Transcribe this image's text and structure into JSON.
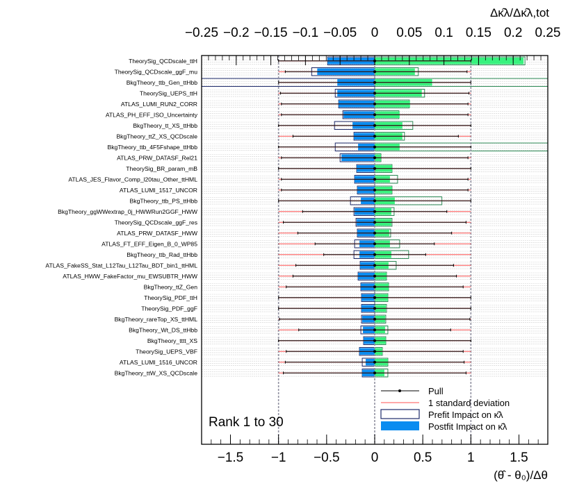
{
  "chart_data": {
    "type": "ranking",
    "title": "Rank 1 to 30",
    "xlabel": "(θ̂ - θ₀)/Δθ",
    "x2label": "Δκ̂λ/Δκ̂λ,tot",
    "xlim": [
      -1.8,
      1.8
    ],
    "x2lim": [
      -0.25,
      0.25
    ],
    "x_ticks": [
      "−1.5",
      "−1",
      "−0.5",
      "0",
      "0.5",
      "1",
      "1.5"
    ],
    "x_tick_values": [
      -1.5,
      -1,
      -0.5,
      0,
      0.5,
      1,
      1.5
    ],
    "x2_ticks": [
      "−0.25",
      "−0.2",
      "−0.15",
      "−0.1",
      "−0.05",
      "0",
      "0.05",
      "0.1",
      "0.15",
      "0.2",
      "0.25"
    ],
    "x2_tick_values": [
      -0.25,
      -0.2,
      -0.15,
      -0.1,
      -0.05,
      0,
      0.05,
      0.1,
      0.15,
      0.2,
      0.25
    ],
    "legend": {
      "pull": "Pull",
      "sigma": "1 standard deviation",
      "prefit": "Prefit Impact on κ̂λ",
      "postfit": "Postfit Impact on κ̂λ"
    },
    "colors": {
      "prefit_fill": "#38f27e",
      "prefit_up_edge": "#2e8b57",
      "prefit_down_edge": "#1f2b6b",
      "postfit": "#0a8cf0",
      "sigma_line": "#ff5050",
      "pull": "#000000",
      "dashed": "#9090a0",
      "stripe": "#cfcfcf"
    },
    "nuisance_parameters": [
      {
        "name": "TheorySig_QCDscale_ttH",
        "pull": 0.0,
        "err_lo": 1.0,
        "err_hi": 1.0,
        "prefit_up": 0.217,
        "prefit_down": -0.068,
        "postfit_up": 0.215,
        "postfit_down": -0.068
      },
      {
        "name": "TheorySig_QCDscale_ggF_mu",
        "pull": 0.0,
        "err_lo": 0.93,
        "err_hi": 0.96,
        "prefit_up": 0.063,
        "prefit_down": -0.091,
        "postfit_up": 0.058,
        "postfit_down": -0.083
      },
      {
        "name": "BkgTheory_ttb_Gen_ttHbb",
        "pull": 0.0,
        "err_lo": 1.0,
        "err_hi": 1.0,
        "prefit_up": 0.27,
        "prefit_down": -0.27,
        "postfit_up": 0.083,
        "postfit_down": -0.054
      },
      {
        "name": "TheorySig_UEPS_ttH",
        "pull": 0.0,
        "err_lo": 0.98,
        "err_hi": 0.98,
        "prefit_up": 0.072,
        "prefit_down": -0.057,
        "postfit_up": 0.068,
        "postfit_down": -0.054
      },
      {
        "name": "ATLAS_LUMI_RUN2_CORR",
        "pull": 0.0,
        "err_lo": 0.97,
        "err_hi": 0.97,
        "prefit_up": 0.05,
        "prefit_down": -0.052,
        "postfit_up": 0.051,
        "postfit_down": -0.052
      },
      {
        "name": "ATLAS_PH_EFF_ISO_Uncertainty",
        "pull": 0.0,
        "err_lo": 0.97,
        "err_hi": 0.97,
        "prefit_up": 0.035,
        "prefit_down": -0.046,
        "postfit_up": 0.036,
        "postfit_down": -0.045
      },
      {
        "name": "BkgTheory_tt_XS_ttHbb",
        "pull": 0.0,
        "err_lo": 1.0,
        "err_hi": 1.0,
        "prefit_up": 0.055,
        "prefit_down": -0.058,
        "postfit_up": 0.04,
        "postfit_down": -0.032
      },
      {
        "name": "BkgTheory_ttZ_XS_QCDscale",
        "pull": 0.0,
        "err_lo": 0.85,
        "err_hi": 0.87,
        "prefit_up": 0.043,
        "prefit_down": -0.03,
        "postfit_up": 0.04,
        "postfit_down": -0.03
      },
      {
        "name": "BkgTheory_ttb_4F5Fshape_ttHbb",
        "pull": 0.0,
        "err_lo": 1.0,
        "err_hi": 1.0,
        "prefit_up": 0.27,
        "prefit_down": -0.057,
        "postfit_up": 0.036,
        "postfit_down": -0.024
      },
      {
        "name": "ATLAS_PRW_DATASF_Rel21",
        "pull": 0.0,
        "err_lo": 0.97,
        "err_hi": 0.97,
        "prefit_up": 0.009,
        "prefit_down": -0.05,
        "postfit_up": 0.009,
        "postfit_down": -0.048
      },
      {
        "name": "TheorySig_BR_param_mB",
        "pull": 0.0,
        "err_lo": 1.0,
        "err_hi": 1.0,
        "prefit_up": 0.025,
        "prefit_down": -0.026,
        "postfit_up": 0.025,
        "postfit_down": -0.026
      },
      {
        "name": "ATLAS_JES_Flavor_Comp_l20tau_Other_ttHML",
        "pull": 0.0,
        "err_lo": 0.97,
        "err_hi": 0.97,
        "prefit_up": 0.033,
        "prefit_down": -0.029,
        "postfit_up": 0.022,
        "postfit_down": -0.029
      },
      {
        "name": "ATLAS_LUMI_1517_UNCOR",
        "pull": 0.0,
        "err_lo": 0.97,
        "err_hi": 0.97,
        "prefit_up": 0.025,
        "prefit_down": -0.025,
        "postfit_up": 0.025,
        "postfit_down": -0.025
      },
      {
        "name": "BkgTheory_ttb_PS_ttHbb",
        "pull": 0.0,
        "err_lo": 1.0,
        "err_hi": 1.0,
        "prefit_up": 0.097,
        "prefit_down": -0.035,
        "postfit_up": 0.029,
        "postfit_down": -0.02
      },
      {
        "name": "BkgTheory_ggWWextrap_0j_HWWRun2GGF_HWW",
        "pull": 0.0,
        "err_lo": 0.75,
        "err_hi": 0.75,
        "prefit_up": 0.028,
        "prefit_down": -0.03,
        "postfit_up": 0.024,
        "postfit_down": -0.029
      },
      {
        "name": "TheorySig_QCDscale_ggF_res",
        "pull": 0.0,
        "err_lo": 0.95,
        "err_hi": 0.95,
        "prefit_up": 0.025,
        "prefit_down": -0.027,
        "postfit_up": 0.024,
        "postfit_down": -0.026
      },
      {
        "name": "ATLAS_PRW_DATASF_HWW",
        "pull": 0.0,
        "err_lo": 0.8,
        "err_hi": 0.8,
        "prefit_up": 0.023,
        "prefit_down": -0.025,
        "postfit_up": 0.021,
        "postfit_down": -0.025
      },
      {
        "name": "ATLAS_FT_EFF_Eigen_B_0_WP85",
        "pull": 0.0,
        "err_lo": 0.62,
        "err_hi": 0.62,
        "prefit_up": 0.036,
        "prefit_down": -0.029,
        "postfit_up": 0.022,
        "postfit_down": -0.022
      },
      {
        "name": "BkgTheory_ttb_Rad_ttHbb",
        "pull": 0.0,
        "err_lo": 0.53,
        "err_hi": 0.53,
        "prefit_up": 0.049,
        "prefit_down": -0.03,
        "postfit_up": 0.024,
        "postfit_down": -0.022
      },
      {
        "name": "ATLAS_FakeSS_Stat_L12Tau_L12Tau_BDT_bin1_ttHML",
        "pull": 0.0,
        "err_lo": 0.82,
        "err_hi": 0.82,
        "prefit_up": 0.031,
        "prefit_down": -0.021,
        "postfit_up": 0.02,
        "postfit_down": -0.021
      },
      {
        "name": "ATLAS_HWW_FakeFactor_mu_EWSUBTR_HWW",
        "pull": 0.0,
        "err_lo": 0.85,
        "err_hi": 0.85,
        "prefit_up": 0.017,
        "prefit_down": -0.024,
        "postfit_up": 0.017,
        "postfit_down": -0.024
      },
      {
        "name": "BkgTheory_ttZ_Gen",
        "pull": 0.0,
        "err_lo": 0.92,
        "err_hi": 0.92,
        "prefit_up": 0.02,
        "prefit_down": -0.02,
        "postfit_up": 0.02,
        "postfit_down": -0.02
      },
      {
        "name": "TheorySig_PDF_ttH",
        "pull": 0.0,
        "err_lo": 1.0,
        "err_hi": 1.0,
        "prefit_up": 0.019,
        "prefit_down": -0.019,
        "postfit_up": 0.019,
        "postfit_down": -0.019
      },
      {
        "name": "TheorySig_PDF_ggF",
        "pull": 0.0,
        "err_lo": 1.0,
        "err_hi": 1.0,
        "prefit_up": 0.017,
        "prefit_down": -0.019,
        "postfit_up": 0.016,
        "postfit_down": -0.019
      },
      {
        "name": "BkgTheory_rareTop_XS_ttHML",
        "pull": 0.0,
        "err_lo": 0.99,
        "err_hi": 0.99,
        "prefit_up": 0.016,
        "prefit_down": -0.019,
        "postfit_up": 0.015,
        "postfit_down": -0.018
      },
      {
        "name": "BkgTheory_Wt_DS_ttHbb",
        "pull": 0.0,
        "err_lo": 0.79,
        "err_hi": 0.79,
        "prefit_up": 0.019,
        "prefit_down": -0.02,
        "postfit_up": 0.015,
        "postfit_down": -0.017
      },
      {
        "name": "BkgTheory_tttt_XS",
        "pull": 0.0,
        "err_lo": 1.0,
        "err_hi": 1.0,
        "prefit_up": 0.016,
        "prefit_down": -0.016,
        "postfit_up": 0.016,
        "postfit_down": -0.016
      },
      {
        "name": "TheorySig_UEPS_VBF",
        "pull": 0.0,
        "err_lo": 0.92,
        "err_hi": 0.92,
        "prefit_up": 0.011,
        "prefit_down": -0.022,
        "postfit_up": 0.011,
        "postfit_down": -0.022
      },
      {
        "name": "ATLAS_LUMI_1516_UNCOR",
        "pull": 0.0,
        "err_lo": 0.93,
        "err_hi": 0.93,
        "prefit_up": 0.019,
        "prefit_down": -0.018,
        "postfit_up": 0.019,
        "postfit_down": -0.013
      },
      {
        "name": "BkgTheory_ttW_XS_QCDscale",
        "pull": 0.0,
        "err_lo": 0.95,
        "err_hi": 0.95,
        "prefit_up": 0.019,
        "prefit_down": -0.018,
        "postfit_up": 0.014,
        "postfit_down": -0.018
      }
    ]
  }
}
